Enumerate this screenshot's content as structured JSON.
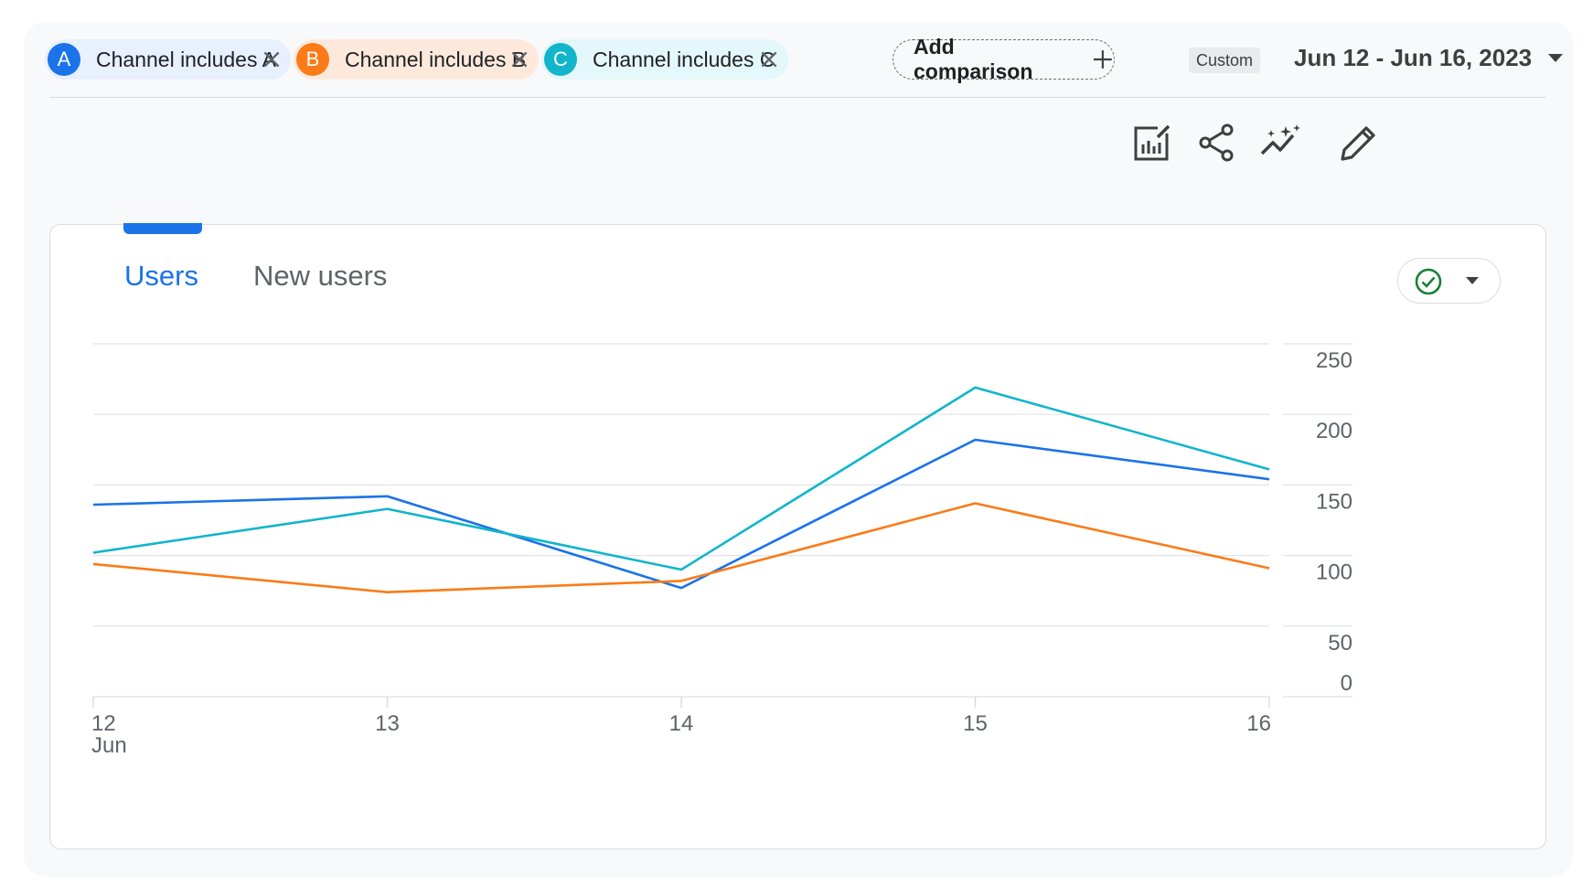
{
  "comparisons": [
    {
      "badge": "A",
      "label": "Channel includes A",
      "color": "#1a73e8",
      "bg": "#e8f0fe"
    },
    {
      "badge": "B",
      "label": "Channel includes B",
      "color": "#fa7b17",
      "bg": "#fde9dc"
    },
    {
      "badge": "C",
      "label": "Channel includes C",
      "color": "#12b5cb",
      "bg": "#e4f7fb"
    }
  ],
  "add_comparison": {
    "label": "Add comparison"
  },
  "date": {
    "badge": "Custom",
    "range": "Jun 12 - Jun 16, 2023"
  },
  "toolbar": {
    "icons": [
      "customize-report-icon",
      "share-icon",
      "insights-icon",
      "edit-icon"
    ]
  },
  "tabs": {
    "active": "Users",
    "inactive": "New users"
  },
  "status": {
    "icon": "check-circle-icon",
    "color": "#188038"
  },
  "chart_data": {
    "type": "line",
    "x": [
      "12",
      "13",
      "14",
      "15",
      "16"
    ],
    "x_sublabel": "Jun",
    "ylim": [
      0,
      250
    ],
    "yticks": [
      0,
      50,
      100,
      150,
      200,
      250
    ],
    "grid": true,
    "series": [
      {
        "name": "Channel includes A",
        "color": "#1a73e8",
        "values": [
          136,
          142,
          77,
          182,
          154
        ]
      },
      {
        "name": "Channel includes B",
        "color": "#fa7b17",
        "values": [
          94,
          74,
          82,
          137,
          91
        ]
      },
      {
        "name": "Channel includes C",
        "color": "#12b5cb",
        "values": [
          102,
          133,
          90,
          219,
          161
        ]
      }
    ]
  }
}
